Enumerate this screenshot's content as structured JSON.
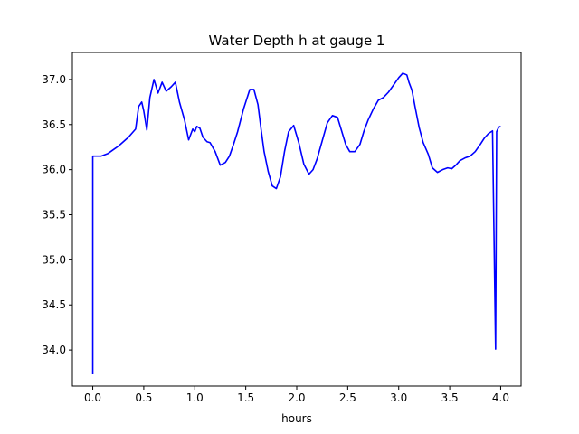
{
  "chart_data": {
    "type": "line",
    "title": "Water Depth h at gauge 1",
    "xlabel": "hours",
    "ylabel": "",
    "xlim": [
      -0.2,
      4.2
    ],
    "ylim": [
      33.6,
      37.3
    ],
    "xticks": [
      0.0,
      0.5,
      1.0,
      1.5,
      2.0,
      2.5,
      3.0,
      3.5,
      4.0
    ],
    "xtick_labels": [
      "0.0",
      "0.5",
      "1.0",
      "1.5",
      "2.0",
      "2.5",
      "3.0",
      "3.5",
      "4.0"
    ],
    "yticks": [
      34.0,
      34.5,
      35.0,
      35.5,
      36.0,
      36.5,
      37.0
    ],
    "ytick_labels": [
      "34.0",
      "34.5",
      "35.0",
      "35.5",
      "36.0",
      "36.5",
      "37.0"
    ],
    "grid": false,
    "series": [
      {
        "color": "#0000ff",
        "x": [
          0.0,
          0.0,
          0.08,
          0.15,
          0.25,
          0.35,
          0.42,
          0.45,
          0.48,
          0.5,
          0.53,
          0.56,
          0.6,
          0.64,
          0.68,
          0.72,
          0.77,
          0.81,
          0.85,
          0.9,
          0.94,
          0.98,
          1.0,
          1.02,
          1.05,
          1.08,
          1.12,
          1.15,
          1.2,
          1.25,
          1.3,
          1.34,
          1.38,
          1.42,
          1.48,
          1.54,
          1.58,
          1.62,
          1.65,
          1.68,
          1.72,
          1.76,
          1.8,
          1.84,
          1.88,
          1.92,
          1.97,
          2.02,
          2.07,
          2.12,
          2.16,
          2.2,
          2.25,
          2.3,
          2.35,
          2.4,
          2.44,
          2.48,
          2.52,
          2.57,
          2.62,
          2.66,
          2.7,
          2.75,
          2.8,
          2.85,
          2.9,
          2.95,
          3.0,
          3.04,
          3.08,
          3.1,
          3.13,
          3.16,
          3.2,
          3.24,
          3.29,
          3.33,
          3.38,
          3.43,
          3.48,
          3.52,
          3.56,
          3.6,
          3.65,
          3.7,
          3.75,
          3.8,
          3.84,
          3.88,
          3.92,
          3.95,
          3.96,
          3.96,
          3.98,
          4.0
        ],
        "y": [
          33.73,
          36.15,
          36.15,
          36.18,
          36.26,
          36.36,
          36.45,
          36.7,
          36.75,
          36.65,
          36.44,
          36.8,
          37.0,
          36.85,
          36.97,
          36.87,
          36.92,
          36.97,
          36.75,
          36.55,
          36.33,
          36.45,
          36.42,
          36.48,
          36.46,
          36.36,
          36.31,
          36.3,
          36.2,
          36.05,
          36.08,
          36.15,
          36.28,
          36.42,
          36.68,
          36.89,
          36.89,
          36.72,
          36.45,
          36.2,
          35.98,
          35.82,
          35.79,
          35.92,
          36.2,
          36.42,
          36.49,
          36.3,
          36.06,
          35.95,
          36.0,
          36.12,
          36.32,
          36.52,
          36.6,
          36.58,
          36.43,
          36.28,
          36.2,
          36.2,
          36.28,
          36.43,
          36.55,
          36.67,
          36.77,
          36.8,
          36.86,
          36.94,
          37.02,
          37.07,
          37.05,
          36.97,
          36.88,
          36.7,
          36.47,
          36.3,
          36.17,
          36.02,
          35.97,
          36.0,
          36.02,
          36.01,
          36.05,
          36.1,
          36.13,
          36.15,
          36.2,
          36.28,
          36.35,
          36.4,
          36.43,
          34.01,
          36.4,
          36.42,
          36.47,
          36.48
        ]
      }
    ]
  }
}
